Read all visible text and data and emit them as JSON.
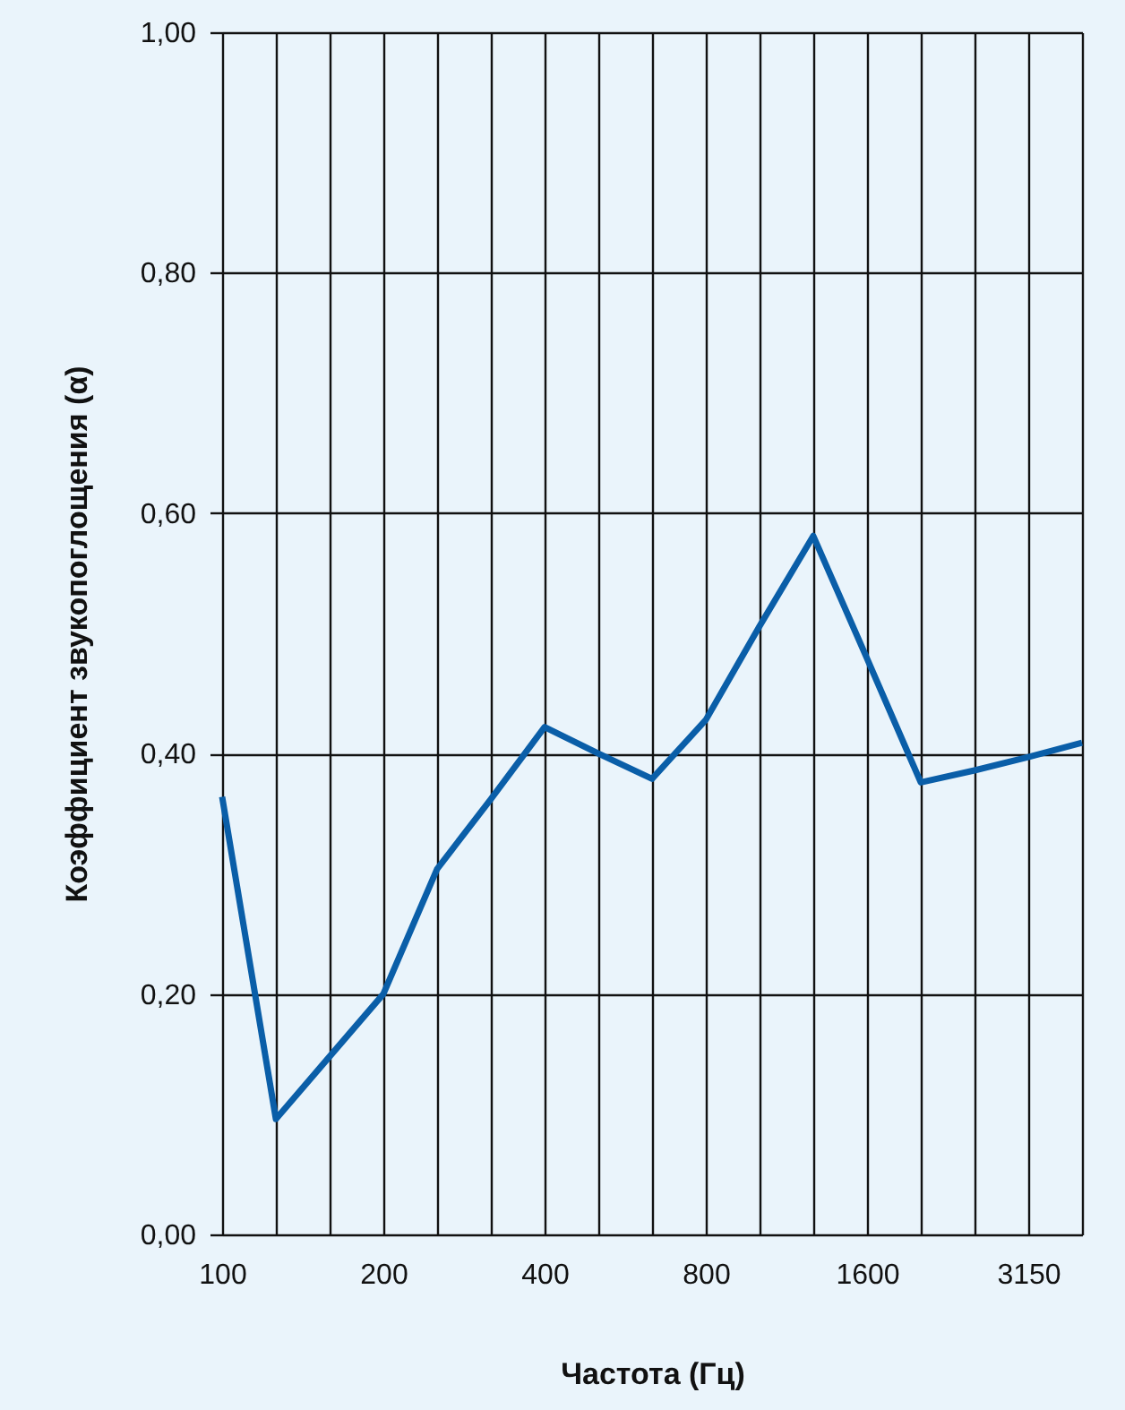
{
  "chart_data": {
    "type": "line",
    "xlabel": "Частота (Гц)",
    "ylabel": "Коэффициент звукопоглощения (α)",
    "categories": [
      "100",
      null,
      null,
      "200",
      null,
      null,
      "400",
      null,
      null,
      "800",
      null,
      null,
      "1600",
      null,
      null,
      "3150",
      null
    ],
    "values": [
      0.364,
      0.096,
      0.148,
      0.2,
      0.304,
      0.362,
      0.422,
      0.4,
      0.379,
      0.428,
      0.506,
      0.581,
      0.479,
      0.376,
      0.386,
      0.397,
      0.409
    ],
    "color": "#0a5ea8",
    "ylim": [
      0,
      1
    ],
    "yticks": [
      {
        "value": 0,
        "label": "0,00"
      },
      {
        "value": 0.2,
        "label": "0,20"
      },
      {
        "value": 0.4,
        "label": "0,40"
      },
      {
        "value": 0.6,
        "label": "0,60"
      },
      {
        "value": 0.8,
        "label": "0,80"
      },
      {
        "value": 1,
        "label": "1,00"
      }
    ],
    "grid": true
  }
}
